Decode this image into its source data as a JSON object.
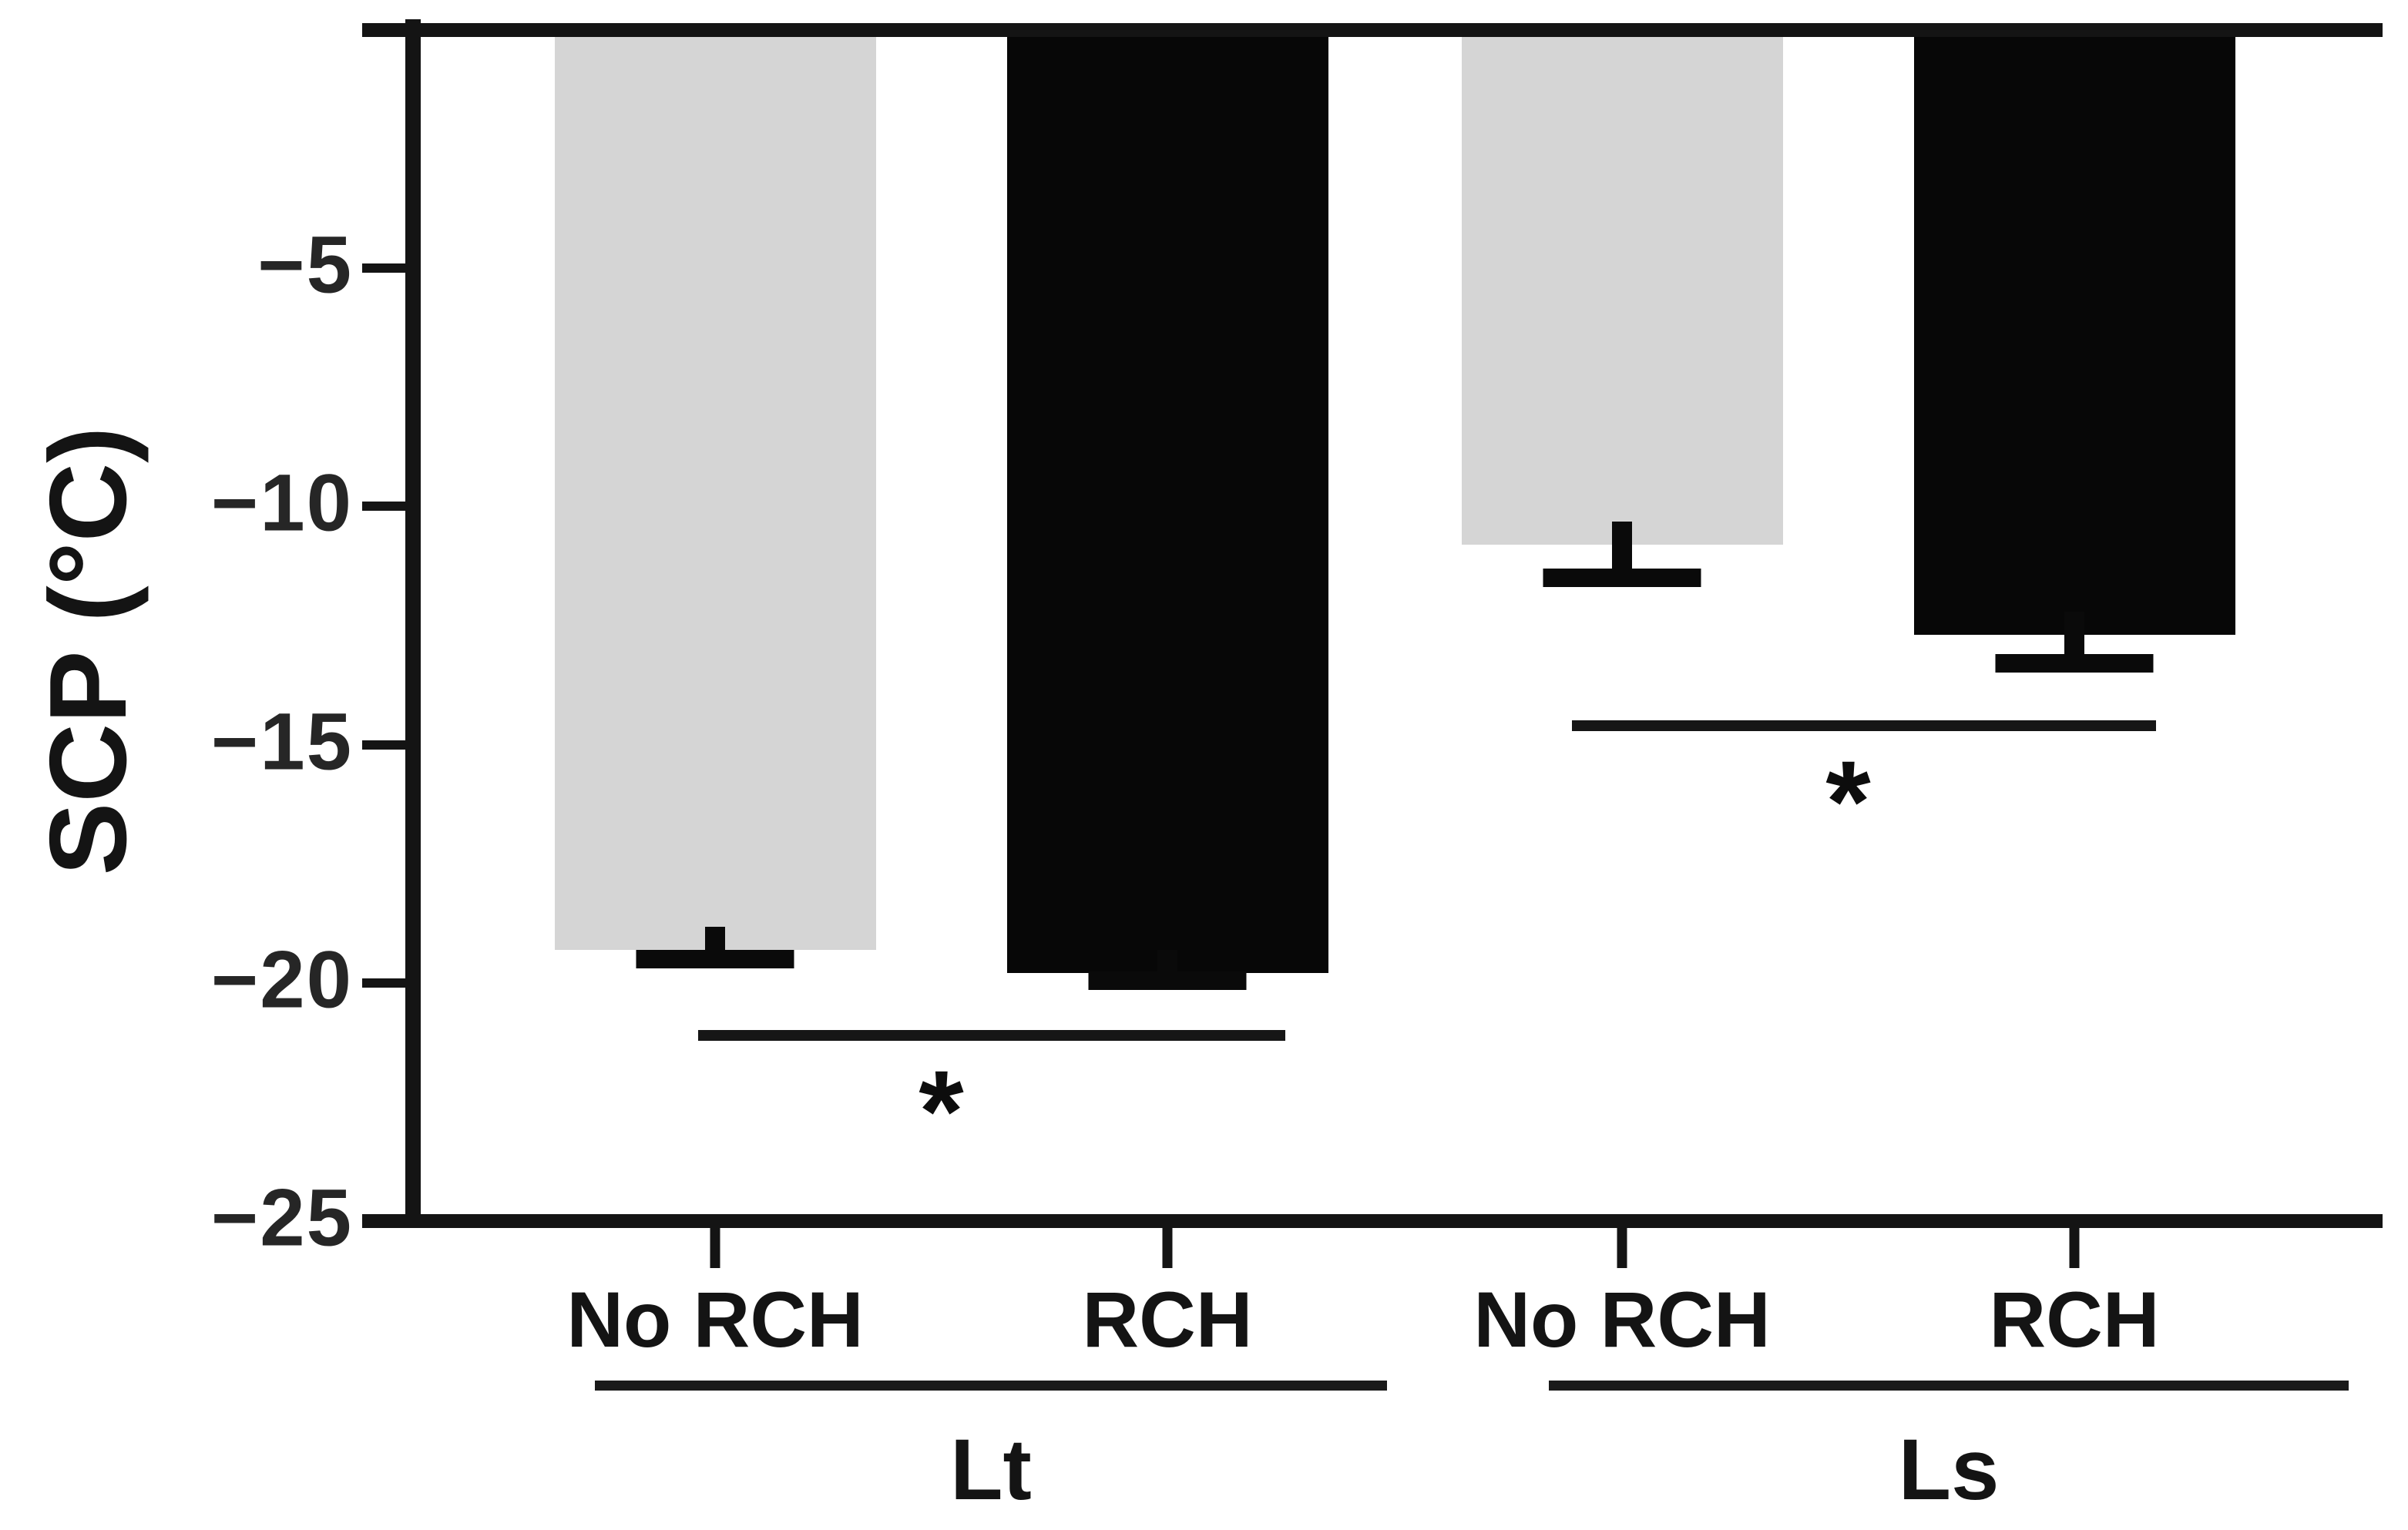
{
  "figure": {
    "background_color": "#ffffff",
    "axis_color": "#141414",
    "text_color": "#1f1f1f"
  },
  "chart_data": {
    "type": "bar",
    "title": "",
    "xlabel": "",
    "ylabel": "SCP (°C)",
    "ylim": [
      -25,
      0
    ],
    "grid": false,
    "legend_position": "none",
    "yticks": [
      -5,
      -10,
      -15,
      -20,
      -25
    ],
    "ytick_labels": [
      "−5",
      "−10",
      "−15",
      "−20",
      "−25"
    ],
    "categories": [
      "Lt",
      "Ls"
    ],
    "series": [
      {
        "name": "No RCH",
        "color": "#d5d5d5",
        "values": [
          -19.3,
          -10.8
        ],
        "errors": [
          0.2,
          0.7
        ]
      },
      {
        "name": "RCH",
        "color": "#070707",
        "values": [
          -19.8,
          -12.7
        ],
        "errors": [
          0.15,
          0.6
        ]
      }
    ],
    "bars": [
      {
        "group": "Lt",
        "condition": "No RCH",
        "value": -19.3,
        "error": 0.2,
        "color": "#d5d5d5"
      },
      {
        "group": "Lt",
        "condition": "RCH",
        "value": -19.8,
        "error": 0.15,
        "color": "#070707"
      },
      {
        "group": "Ls",
        "condition": "No RCH",
        "value": -10.8,
        "error": 0.7,
        "color": "#d5d5d5"
      },
      {
        "group": "Ls",
        "condition": "RCH",
        "value": -12.7,
        "error": 0.6,
        "color": "#070707"
      }
    ],
    "group_labels": [
      "Lt",
      "Ls"
    ],
    "significance": [
      {
        "group": "Lt",
        "marker": "*",
        "compares": [
          "No RCH",
          "RCH"
        ],
        "line_y_value": -21.1
      },
      {
        "group": "Ls",
        "marker": "*",
        "compares": [
          "No RCH",
          "RCH"
        ],
        "line_y_value": -14.6
      }
    ]
  }
}
